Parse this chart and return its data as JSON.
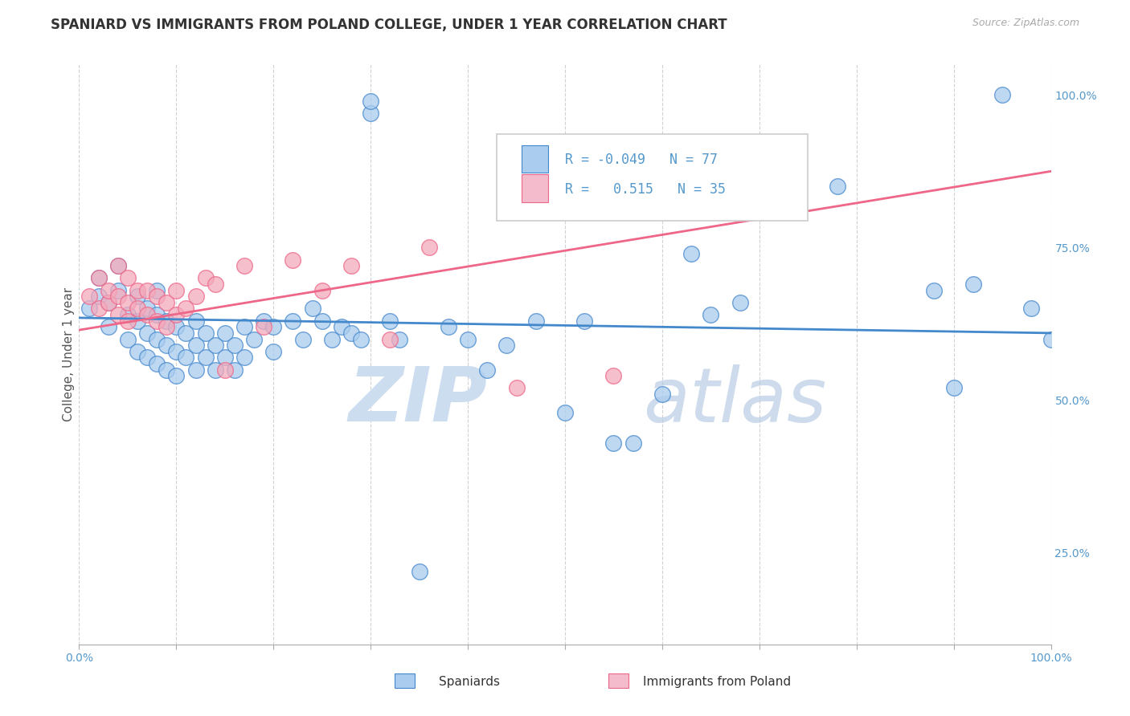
{
  "title": "SPANIARD VS IMMIGRANTS FROM POLAND COLLEGE, UNDER 1 YEAR CORRELATION CHART",
  "source_text": "Source: ZipAtlas.com",
  "ylabel": "College, Under 1 year",
  "r_spaniards": -0.049,
  "n_spaniards": 77,
  "r_poland": 0.515,
  "n_poland": 35,
  "color_spaniards": "#aaccee",
  "color_poland": "#f4aabb",
  "line_color_spaniards": "#4488cc",
  "line_color_poland": "#ee6688",
  "legend_box_spaniards": "#aaccee",
  "legend_box_poland": "#f4bbcc",
  "watermark_zip_color": "#ccddf0",
  "watermark_atlas_color": "#b8cce4",
  "background_color": "#ffffff",
  "grid_color": "#cccccc",
  "tick_color": "#5599cc",
  "axis_label_color": "#555555",
  "right_ytick_labels": [
    "25.0%",
    "50.0%",
    "75.0%",
    "100.0%"
  ],
  "right_ytick_values": [
    0.25,
    0.5,
    0.75,
    1.0
  ],
  "xlim": [
    0.0,
    1.0
  ],
  "ylim": [
    0.1,
    1.05
  ],
  "sp_line_start": 0.635,
  "sp_line_end": 0.61,
  "pol_line_start": 0.615,
  "pol_line_end": 0.875,
  "spaniards_x": [
    0.01,
    0.02,
    0.02,
    0.03,
    0.03,
    0.04,
    0.04,
    0.05,
    0.05,
    0.06,
    0.06,
    0.06,
    0.07,
    0.07,
    0.07,
    0.08,
    0.08,
    0.08,
    0.08,
    0.09,
    0.09,
    0.09,
    0.1,
    0.1,
    0.1,
    0.11,
    0.11,
    0.12,
    0.12,
    0.12,
    0.13,
    0.13,
    0.14,
    0.14,
    0.15,
    0.15,
    0.16,
    0.16,
    0.17,
    0.17,
    0.18,
    0.19,
    0.2,
    0.2,
    0.22,
    0.23,
    0.24,
    0.25,
    0.26,
    0.27,
    0.28,
    0.29,
    0.3,
    0.3,
    0.32,
    0.33,
    0.35,
    0.38,
    0.4,
    0.42,
    0.44,
    0.47,
    0.5,
    0.52,
    0.55,
    0.57,
    0.6,
    0.63,
    0.65,
    0.68,
    0.78,
    0.88,
    0.9,
    0.92,
    0.95,
    0.98,
    1.0
  ],
  "spaniards_y": [
    0.65,
    0.67,
    0.7,
    0.62,
    0.66,
    0.68,
    0.72,
    0.6,
    0.64,
    0.58,
    0.63,
    0.67,
    0.57,
    0.61,
    0.65,
    0.56,
    0.6,
    0.64,
    0.68,
    0.55,
    0.59,
    0.63,
    0.54,
    0.58,
    0.62,
    0.57,
    0.61,
    0.55,
    0.59,
    0.63,
    0.57,
    0.61,
    0.55,
    0.59,
    0.57,
    0.61,
    0.55,
    0.59,
    0.57,
    0.62,
    0.6,
    0.63,
    0.58,
    0.62,
    0.63,
    0.6,
    0.65,
    0.63,
    0.6,
    0.62,
    0.61,
    0.6,
    0.97,
    0.99,
    0.63,
    0.6,
    0.22,
    0.62,
    0.6,
    0.55,
    0.59,
    0.63,
    0.48,
    0.63,
    0.43,
    0.43,
    0.51,
    0.74,
    0.64,
    0.66,
    0.85,
    0.68,
    0.52,
    0.69,
    1.0,
    0.65,
    0.6
  ],
  "poland_x": [
    0.01,
    0.02,
    0.02,
    0.03,
    0.03,
    0.04,
    0.04,
    0.04,
    0.05,
    0.05,
    0.05,
    0.06,
    0.06,
    0.07,
    0.07,
    0.08,
    0.08,
    0.09,
    0.09,
    0.1,
    0.1,
    0.11,
    0.12,
    0.13,
    0.14,
    0.15,
    0.17,
    0.19,
    0.22,
    0.25,
    0.28,
    0.32,
    0.36,
    0.45,
    0.55
  ],
  "poland_y": [
    0.67,
    0.65,
    0.7,
    0.66,
    0.68,
    0.64,
    0.67,
    0.72,
    0.63,
    0.66,
    0.7,
    0.65,
    0.68,
    0.64,
    0.68,
    0.63,
    0.67,
    0.62,
    0.66,
    0.64,
    0.68,
    0.65,
    0.67,
    0.7,
    0.69,
    0.55,
    0.72,
    0.62,
    0.73,
    0.68,
    0.72,
    0.6,
    0.75,
    0.52,
    0.54
  ]
}
